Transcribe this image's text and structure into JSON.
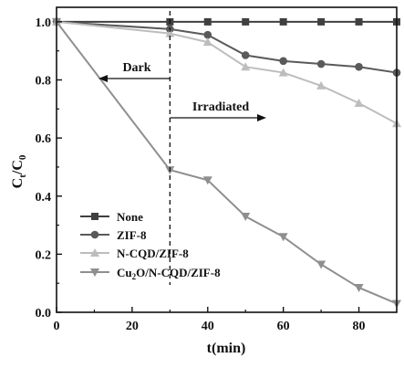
{
  "chart_data": {
    "type": "line",
    "title": "",
    "xlabel": "t(min)",
    "ylabel": {
      "main": "C",
      "sub1": "t",
      "slash": "/C",
      "sub2": "0"
    },
    "xlim": [
      0,
      90
    ],
    "ylim": [
      0.0,
      1.05
    ],
    "x_ticks": [
      "0",
      "20",
      "40",
      "60",
      "80"
    ],
    "y_ticks": [
      "0.0",
      "0.2",
      "0.4",
      "0.6",
      "0.8",
      "1.0"
    ],
    "grid": false,
    "legend_position": "bottom-left",
    "divider_x": 30,
    "annotations": {
      "dark": "Dark",
      "irradiated": "Irradiated"
    },
    "series": [
      {
        "name": "None",
        "marker": "square",
        "color": "#404040",
        "x": [
          0,
          30,
          40,
          50,
          60,
          70,
          80,
          90
        ],
        "y": [
          1.0,
          1.0,
          1.0,
          1.0,
          1.0,
          1.0,
          1.0,
          1.0
        ]
      },
      {
        "name": "ZIF-8",
        "marker": "circle",
        "color": "#5a5a5a",
        "x": [
          0,
          30,
          40,
          50,
          60,
          70,
          80,
          90
        ],
        "y": [
          1.0,
          0.975,
          0.955,
          0.885,
          0.865,
          0.855,
          0.845,
          0.825
        ]
      },
      {
        "name": "N-CQD/ZIF-8",
        "marker": "triangle-up",
        "color": "#bdbdbd",
        "x": [
          0,
          30,
          40,
          50,
          60,
          70,
          80,
          90
        ],
        "y": [
          1.0,
          0.96,
          0.93,
          0.845,
          0.825,
          0.78,
          0.72,
          0.65
        ]
      },
      {
        "name": "Cu2O/N-CQD/ZIF-8",
        "name_parts": {
          "pre": "Cu",
          "sub": "2",
          "post": "O/N-CQD/ZIF-8"
        },
        "marker": "triangle-down",
        "color": "#8f8f8f",
        "x": [
          0,
          30,
          40,
          50,
          60,
          70,
          80,
          90
        ],
        "y": [
          1.0,
          0.49,
          0.455,
          0.33,
          0.26,
          0.165,
          0.085,
          0.03
        ]
      }
    ]
  }
}
